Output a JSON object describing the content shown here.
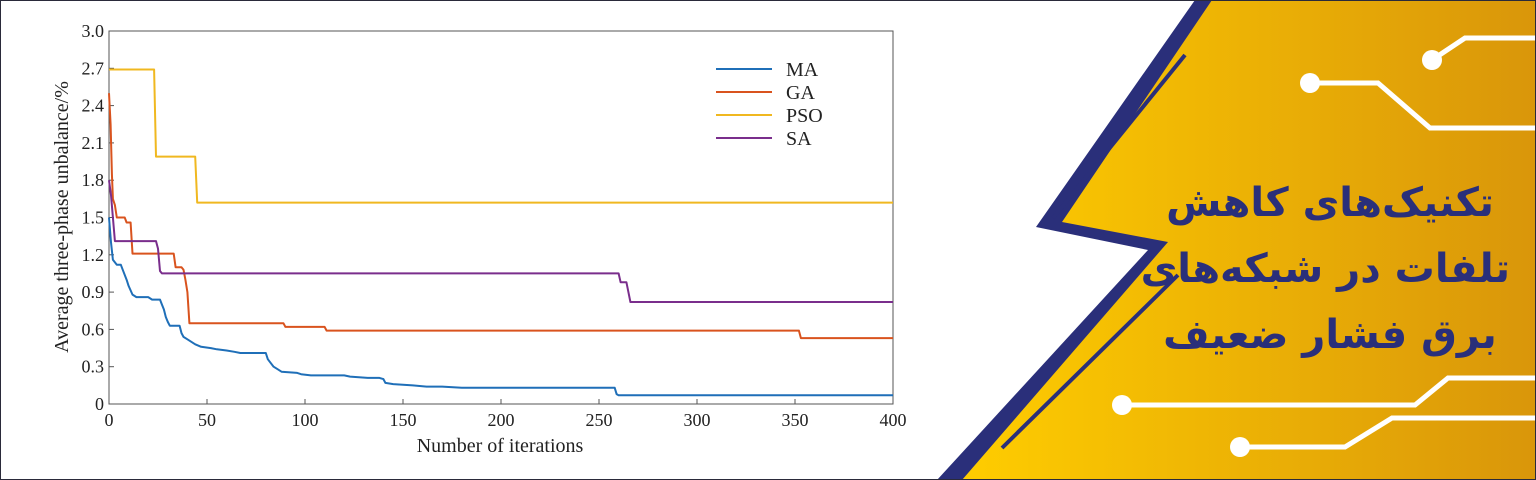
{
  "banner": {
    "title_lines": [
      "تکنیک‌های کاهش",
      "تلفات در شبکه‌های",
      "برق فشار ضعیف"
    ],
    "colors": {
      "gold_light": "#ffcd00",
      "gold_dark": "#d9960a",
      "navy": "#2a2f7a",
      "circuit": "#ffffff"
    }
  },
  "chart_data": {
    "type": "line",
    "title": "",
    "xlabel": "Number of iterations",
    "ylabel": "Average three-phase unbalance/%",
    "xlim": [
      0,
      400
    ],
    "ylim": [
      0,
      3.0
    ],
    "xticks": [
      0,
      50,
      100,
      150,
      200,
      250,
      300,
      350,
      400
    ],
    "yticks": [
      "0",
      "0.3",
      "0.6",
      "0.9",
      "1.2",
      "1.5",
      "1.8",
      "2.1",
      "2.4",
      "2.7",
      "3.0"
    ],
    "grid": false,
    "legend_position": "top-right",
    "series": [
      {
        "name": "MA",
        "color": "#1f6fb8",
        "points": [
          [
            0,
            1.5
          ],
          [
            1,
            1.3
          ],
          [
            2,
            1.16
          ],
          [
            4,
            1.12
          ],
          [
            6,
            1.12
          ],
          [
            7,
            1.08
          ],
          [
            9,
            1.0
          ],
          [
            10,
            0.95
          ],
          [
            12,
            0.88
          ],
          [
            14,
            0.86
          ],
          [
            20,
            0.86
          ],
          [
            22,
            0.84
          ],
          [
            26,
            0.84
          ],
          [
            27,
            0.8
          ],
          [
            28,
            0.76
          ],
          [
            29,
            0.7
          ],
          [
            30,
            0.66
          ],
          [
            31,
            0.63
          ],
          [
            36,
            0.63
          ],
          [
            37,
            0.57
          ],
          [
            38,
            0.54
          ],
          [
            40,
            0.52
          ],
          [
            42,
            0.5
          ],
          [
            44,
            0.48
          ],
          [
            47,
            0.46
          ],
          [
            52,
            0.45
          ],
          [
            55,
            0.44
          ],
          [
            60,
            0.43
          ],
          [
            64,
            0.42
          ],
          [
            67,
            0.41
          ],
          [
            80,
            0.41
          ],
          [
            81,
            0.36
          ],
          [
            82,
            0.34
          ],
          [
            84,
            0.3
          ],
          [
            86,
            0.28
          ],
          [
            88,
            0.26
          ],
          [
            96,
            0.25
          ],
          [
            98,
            0.24
          ],
          [
            103,
            0.23
          ],
          [
            120,
            0.23
          ],
          [
            123,
            0.22
          ],
          [
            132,
            0.21
          ],
          [
            138,
            0.21
          ],
          [
            140,
            0.2
          ],
          [
            141,
            0.17
          ],
          [
            145,
            0.16
          ],
          [
            155,
            0.15
          ],
          [
            162,
            0.14
          ],
          [
            170,
            0.14
          ],
          [
            180,
            0.13
          ],
          [
            258,
            0.13
          ],
          [
            259,
            0.08
          ],
          [
            260,
            0.07
          ],
          [
            400,
            0.07
          ]
        ]
      },
      {
        "name": "GA",
        "color": "#d9531e",
        "points": [
          [
            0,
            2.5
          ],
          [
            0.8,
            2.25
          ],
          [
            1.5,
            1.85
          ],
          [
            2,
            1.65
          ],
          [
            3,
            1.6
          ],
          [
            4,
            1.5
          ],
          [
            8,
            1.5
          ],
          [
            9,
            1.46
          ],
          [
            11,
            1.46
          ],
          [
            12,
            1.21
          ],
          [
            33,
            1.21
          ],
          [
            34,
            1.1
          ],
          [
            37,
            1.1
          ],
          [
            38,
            1.08
          ],
          [
            39,
            1.0
          ],
          [
            40,
            0.9
          ],
          [
            41,
            0.65
          ],
          [
            89,
            0.65
          ],
          [
            90,
            0.62
          ],
          [
            110,
            0.62
          ],
          [
            111,
            0.59
          ],
          [
            352,
            0.59
          ],
          [
            353,
            0.53
          ],
          [
            400,
            0.53
          ]
        ]
      },
      {
        "name": "PSO",
        "color": "#f0b820",
        "points": [
          [
            0,
            2.69
          ],
          [
            23,
            2.69
          ],
          [
            24,
            1.99
          ],
          [
            44,
            1.99
          ],
          [
            45,
            1.62
          ],
          [
            400,
            1.62
          ]
        ]
      },
      {
        "name": "SA",
        "color": "#7a2e8c",
        "points": [
          [
            0,
            1.8
          ],
          [
            1,
            1.68
          ],
          [
            2,
            1.5
          ],
          [
            3,
            1.31
          ],
          [
            24,
            1.31
          ],
          [
            25,
            1.25
          ],
          [
            26,
            1.07
          ],
          [
            27,
            1.05
          ],
          [
            260,
            1.05
          ],
          [
            261,
            0.98
          ],
          [
            264,
            0.98
          ],
          [
            265,
            0.9
          ],
          [
            266,
            0.82
          ],
          [
            400,
            0.82
          ]
        ]
      }
    ]
  }
}
